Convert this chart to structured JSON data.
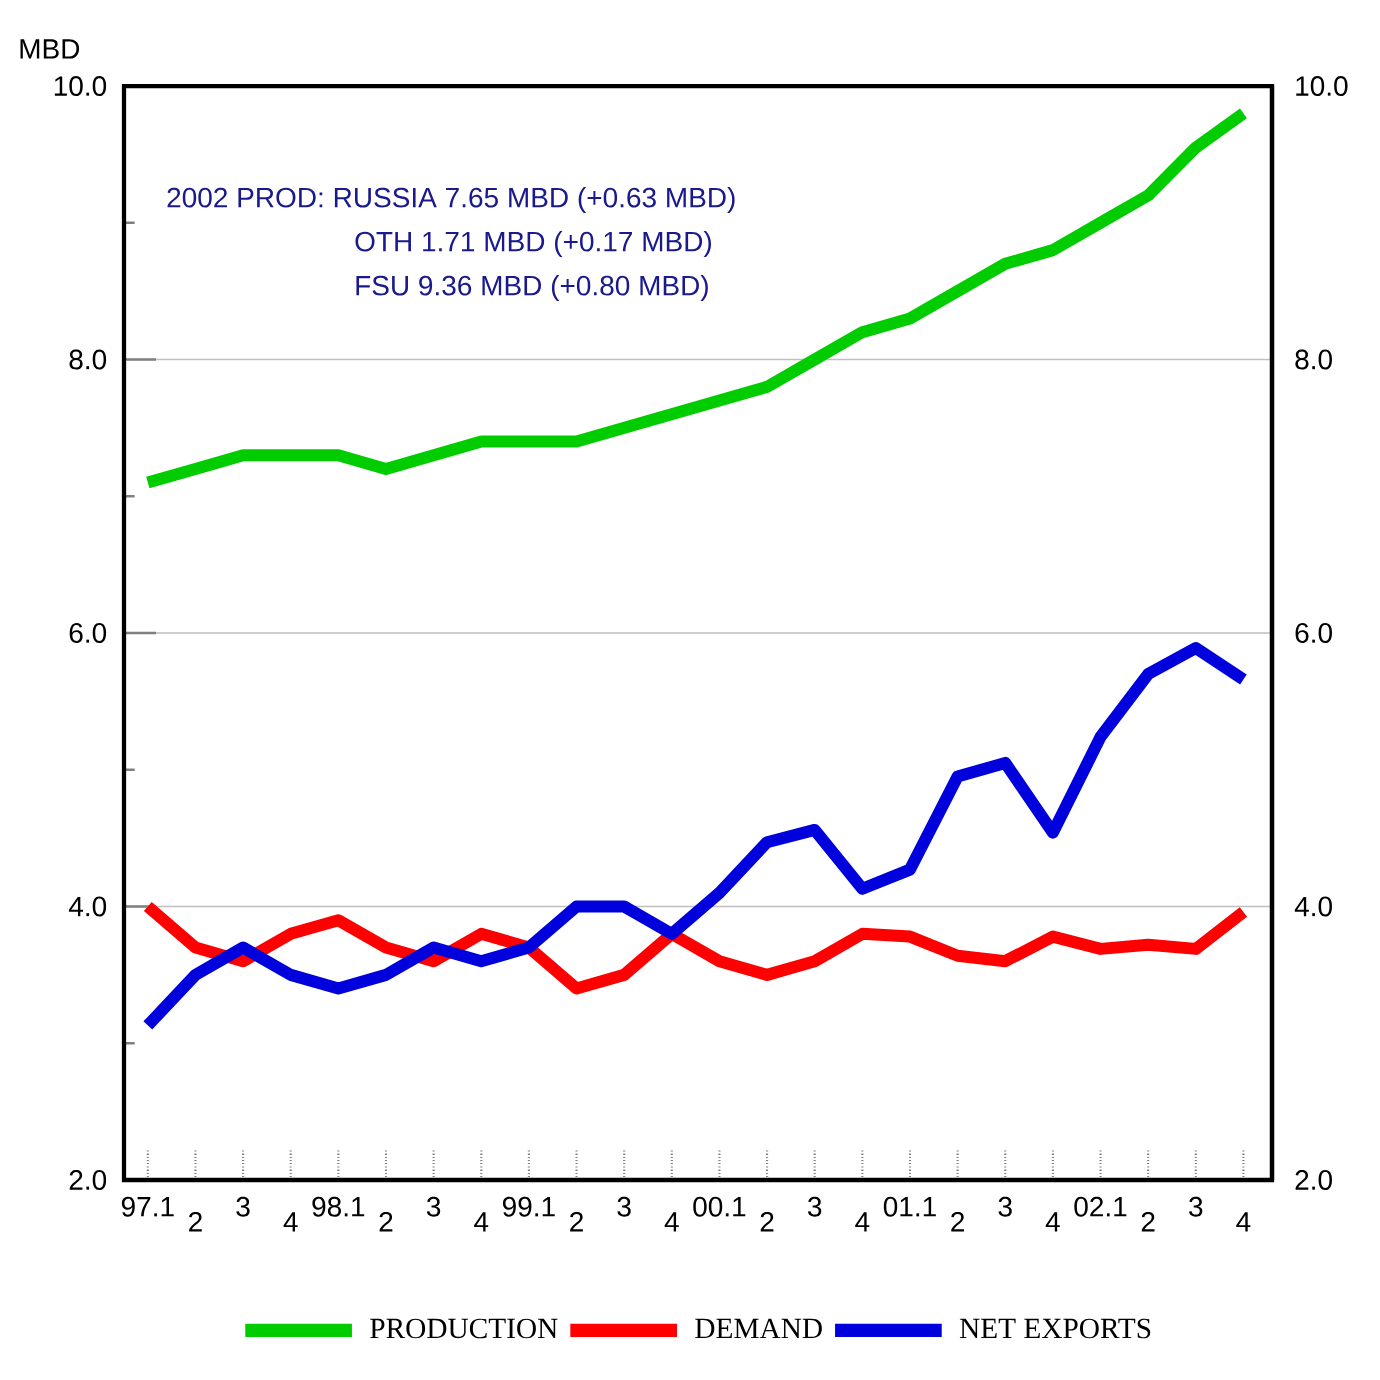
{
  "chart_data": {
    "type": "line",
    "ylabel": "MBD",
    "categories": [
      "97.1",
      "2",
      "3",
      "4",
      "98.1",
      "2",
      "3",
      "4",
      "99.1",
      "2",
      "3",
      "4",
      "00.1",
      "2",
      "3",
      "4",
      "01.1",
      "2",
      "3",
      "4",
      "02.1",
      "2",
      "3",
      "4"
    ],
    "series": [
      {
        "name": "PRODUCTION",
        "color": "#00cc00",
        "values": [
          7.1,
          7.2,
          7.3,
          7.3,
          7.3,
          7.2,
          7.3,
          7.4,
          7.4,
          7.4,
          7.5,
          7.6,
          7.7,
          7.8,
          8.0,
          8.2,
          8.3,
          8.5,
          8.7,
          8.8,
          9.0,
          9.2,
          9.55,
          9.8
        ]
      },
      {
        "name": "DEMAND",
        "color": "#ff0000",
        "values": [
          4.0,
          3.7,
          3.6,
          3.8,
          3.9,
          3.7,
          3.6,
          3.8,
          3.7,
          3.4,
          3.5,
          3.8,
          3.6,
          3.5,
          3.6,
          3.8,
          3.78,
          3.64,
          3.6,
          3.78,
          3.69,
          3.72,
          3.69,
          3.96
        ]
      },
      {
        "name": "NET EXPORTS",
        "color": "#0000dd",
        "values": [
          3.13,
          3.5,
          3.7,
          3.5,
          3.4,
          3.5,
          3.7,
          3.6,
          3.7,
          4.0,
          4.0,
          3.8,
          4.1,
          4.47,
          4.56,
          4.13,
          4.27,
          4.95,
          5.05,
          4.54,
          5.24,
          5.7,
          5.89,
          5.66
        ]
      }
    ],
    "ylim": [
      2,
      10
    ],
    "yticks": [
      {
        "value": 2,
        "label": "2.0"
      },
      {
        "value": 3,
        "label": null
      },
      {
        "value": 4,
        "label": "4.0"
      },
      {
        "value": 5,
        "label": null
      },
      {
        "value": 6,
        "label": "6.0"
      },
      {
        "value": 7,
        "label": null
      },
      {
        "value": 8,
        "label": "8.0"
      },
      {
        "value": 9,
        "label": null
      },
      {
        "value": 10,
        "label": "10.0"
      }
    ],
    "y2lim": [
      2,
      10
    ],
    "y2ticks": [
      {
        "value": 2,
        "label": "2.0"
      },
      {
        "value": 4,
        "label": "4.0"
      },
      {
        "value": 6,
        "label": "6.0"
      },
      {
        "value": 8,
        "label": "8.0"
      },
      {
        "value": 10,
        "label": "10.0"
      }
    ],
    "annotations": [
      "2002 PROD: RUSSIA  7.65 MBD (+0.63 MBD)",
      "OTH        1.71 MBD (+0.17 MBD)",
      "FSU        9.36 MBD (+0.80 MBD)"
    ],
    "grid": "y",
    "legend": "bottom",
    "marker": "none",
    "line_style": "solid"
  }
}
